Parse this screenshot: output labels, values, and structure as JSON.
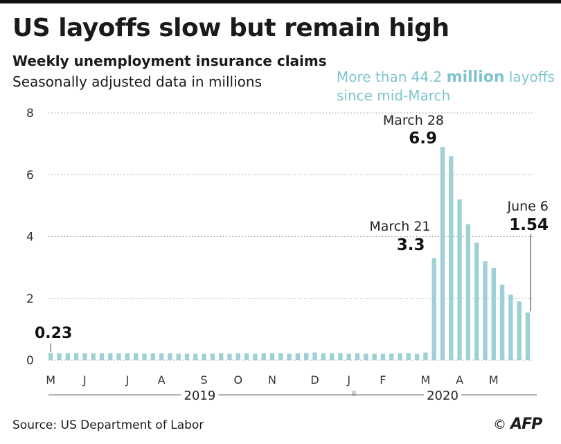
{
  "header": {
    "title": "US layoffs slow but remain high",
    "subtitle": "Weekly unemployment insurance claims",
    "subtitle2": "Seasonally adjusted data in millions",
    "callout_pre": "More than 44.2 ",
    "callout_bold": "million",
    "callout_post": " layoffs",
    "callout_line2": "since mid-March"
  },
  "footer": {
    "source": "Source: US Department of Labor",
    "copyright": "©",
    "logo": "AFP"
  },
  "colors": {
    "bar": "#9fd0d6",
    "grid": "#9a9a9a",
    "axis_text": "#333333",
    "callout": "#7ec4cc"
  },
  "chart_data": {
    "type": "bar",
    "ylim": [
      0,
      8
    ],
    "yticks": [
      0,
      2,
      4,
      6,
      8
    ],
    "grid": "horizontal-dotted",
    "month_labels": [
      {
        "label": "M",
        "week": 0
      },
      {
        "label": "J",
        "week": 4
      },
      {
        "label": "J",
        "week": 9
      },
      {
        "label": "A",
        "week": 13
      },
      {
        "label": "S",
        "week": 18
      },
      {
        "label": "O",
        "week": 22
      },
      {
        "label": "N",
        "week": 26
      },
      {
        "label": "D",
        "week": 31
      },
      {
        "label": "J",
        "week": 35
      },
      {
        "label": "F",
        "week": 39
      },
      {
        "label": "M",
        "week": 44
      },
      {
        "label": "A",
        "week": 48
      },
      {
        "label": "M",
        "week": 52
      }
    ],
    "year_labels": [
      {
        "label": "2019",
        "from": 0,
        "to": 36
      },
      {
        "label": "2020",
        "from": 36,
        "to": 57
      }
    ],
    "values": [
      0.23,
      0.22,
      0.22,
      0.22,
      0.22,
      0.22,
      0.22,
      0.22,
      0.22,
      0.22,
      0.22,
      0.21,
      0.22,
      0.22,
      0.22,
      0.21,
      0.21,
      0.21,
      0.21,
      0.21,
      0.22,
      0.21,
      0.22,
      0.22,
      0.21,
      0.22,
      0.22,
      0.22,
      0.21,
      0.22,
      0.23,
      0.25,
      0.22,
      0.22,
      0.22,
      0.21,
      0.22,
      0.21,
      0.21,
      0.21,
      0.21,
      0.22,
      0.22,
      0.21,
      0.25,
      3.3,
      6.9,
      6.6,
      5.2,
      4.4,
      3.8,
      3.2,
      2.98,
      2.44,
      2.12,
      1.9,
      1.54
    ],
    "annotations": [
      {
        "label": "",
        "value_text": "0.23",
        "week": 0
      },
      {
        "label": "March 21",
        "value_text": "3.3",
        "week": 45
      },
      {
        "label": "March 28",
        "value_text": "6.9",
        "week": 46
      },
      {
        "label": "June 6",
        "value_text": "1.54",
        "week": 56
      }
    ]
  }
}
